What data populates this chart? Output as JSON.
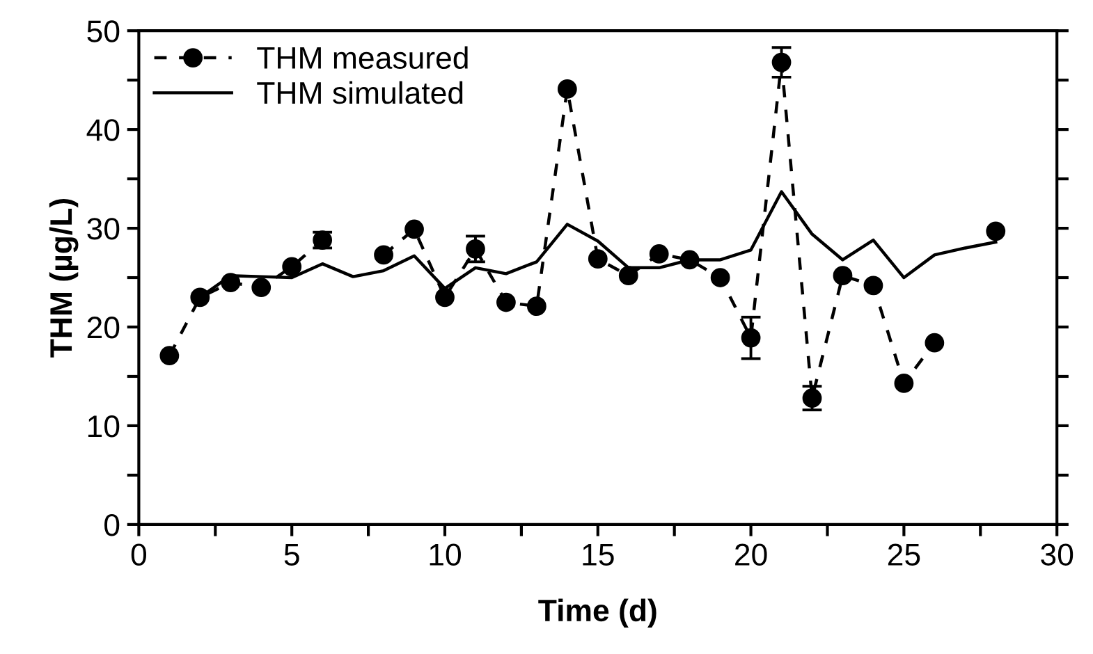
{
  "chart_data": {
    "type": "line",
    "xlabel": "Time (d)",
    "ylabel": "THM (µg/L)",
    "xlim": [
      0,
      30
    ],
    "ylim": [
      0,
      50
    ],
    "xticks": [
      0,
      {
        "value": 2.5,
        "label": null
      },
      5,
      {
        "value": 7.5,
        "label": null
      },
      10,
      {
        "value": 12.5,
        "label": null
      },
      15,
      {
        "value": 17.5,
        "label": null
      },
      20,
      {
        "value": 22.5,
        "label": null
      },
      25,
      {
        "value": 27.5,
        "label": null
      },
      30
    ],
    "yticks": [
      0,
      {
        "value": 5,
        "label": null
      },
      10,
      {
        "value": 15,
        "label": null
      },
      20,
      {
        "value": 25,
        "label": null
      },
      30,
      {
        "value": 35,
        "label": null
      },
      40,
      {
        "value": 45,
        "label": null
      },
      50
    ],
    "grid": false,
    "legend": "top left",
    "series": [
      {
        "name": "THM measured",
        "color": "#000000",
        "marker": "circle",
        "line_style": "dashed",
        "x": [
          1,
          2,
          3,
          4,
          5,
          6,
          7,
          8,
          9,
          10,
          11,
          12,
          13,
          14,
          15,
          16,
          17,
          18,
          19,
          20,
          21,
          22,
          23,
          24,
          25,
          26,
          27,
          28
        ],
        "values": [
          17.1,
          23.0,
          24.5,
          24.0,
          26.1,
          28.8,
          null,
          27.3,
          29.9,
          23.0,
          27.9,
          22.5,
          22.1,
          44.1,
          26.9,
          25.2,
          27.4,
          26.8,
          25.0,
          18.9,
          46.8,
          12.8,
          25.2,
          24.2,
          14.3,
          18.4,
          null,
          29.7
        ],
        "errors": [
          null,
          null,
          null,
          null,
          null,
          0.8,
          null,
          null,
          null,
          null,
          1.3,
          null,
          null,
          null,
          null,
          null,
          null,
          null,
          null,
          2.1,
          1.5,
          1.2,
          null,
          null,
          null,
          null,
          null,
          null
        ]
      },
      {
        "name": "THM simulated",
        "color": "#000000",
        "marker": "none",
        "line_style": "solid",
        "x": [
          2,
          3,
          4,
          5,
          6,
          7,
          8,
          9,
          10,
          11,
          12,
          13,
          14,
          15,
          16,
          17,
          18,
          19,
          20,
          21,
          22,
          23,
          24,
          25,
          26,
          27,
          28
        ],
        "values": [
          23.0,
          25.2,
          25.1,
          25.0,
          26.4,
          25.1,
          25.7,
          27.2,
          23.9,
          26.0,
          25.4,
          26.6,
          30.4,
          28.7,
          26.0,
          26.0,
          26.8,
          26.8,
          27.8,
          33.7,
          29.4,
          26.8,
          28.8,
          25.0,
          27.3,
          28.0,
          28.6
        ]
      }
    ]
  }
}
